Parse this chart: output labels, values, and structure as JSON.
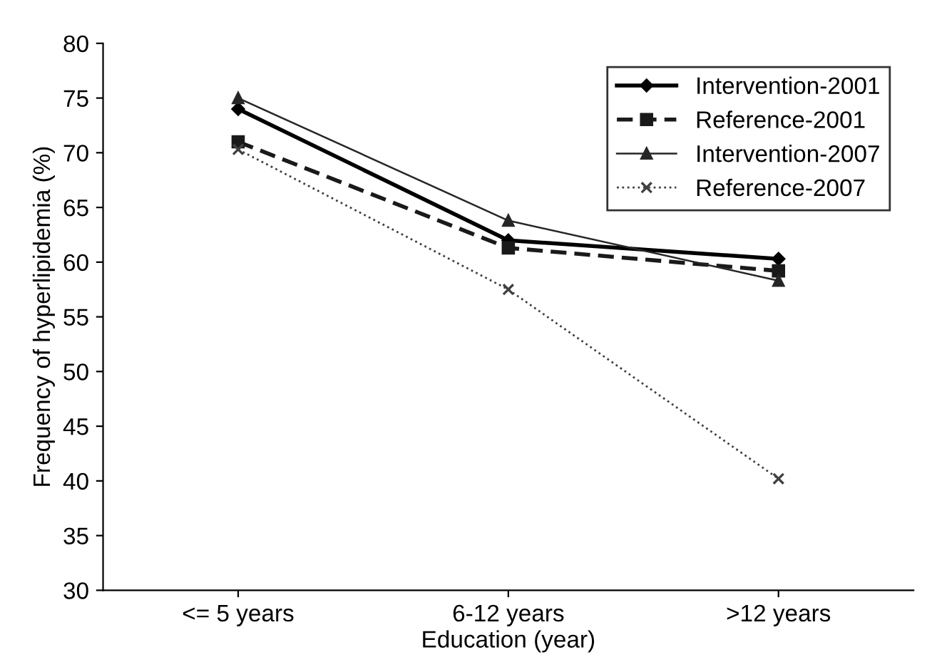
{
  "chart_data": {
    "type": "line",
    "xlabel": "Education (year)",
    "ylabel": "Frequency of hyperlipidemia (%)",
    "categories": [
      "<= 5 years",
      "6-12 years",
      ">12 years"
    ],
    "series": [
      {
        "name": "Intervention-2001",
        "color": "#000000",
        "values": [
          74,
          62,
          60.3
        ],
        "marker": "diamond",
        "line_style": "solid"
      },
      {
        "name": "Reference-2001",
        "color": "#1a1a1a",
        "values": [
          71,
          61.3,
          59.2
        ],
        "marker": "square",
        "line_style": "dashed"
      },
      {
        "name": "Intervention-2007",
        "color": "#262626",
        "values": [
          75,
          63.8,
          58.3
        ],
        "marker": "triangle",
        "line_style": "solid"
      },
      {
        "name": "Reference-2007",
        "color": "#404040",
        "values": [
          70.3,
          57.5,
          40.2
        ],
        "marker": "cross",
        "line_style": "dotted"
      }
    ],
    "ylim": [
      30,
      80
    ],
    "yticks": [
      30,
      35,
      40,
      45,
      50,
      55,
      60,
      65,
      70,
      75,
      80
    ],
    "grid": false,
    "legend": "top right"
  }
}
